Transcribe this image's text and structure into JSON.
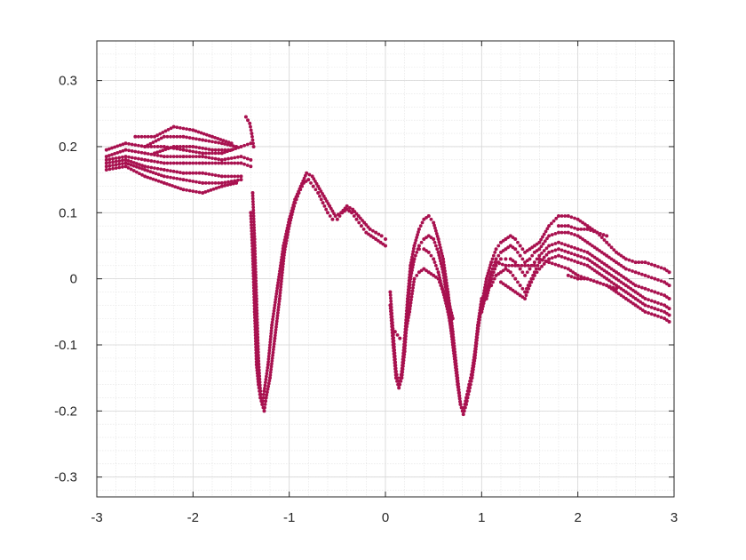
{
  "chart_data": {
    "type": "scatter",
    "xlim": [
      -3,
      3
    ],
    "ylim": [
      -0.33,
      0.36
    ],
    "grid": true,
    "minor_grid": true,
    "marker_color": "#a8114f",
    "x_ticks": [
      -3,
      -2,
      -1,
      0,
      1,
      2,
      3
    ],
    "y_ticks": [
      -0.3,
      -0.2,
      -0.1,
      0,
      0.1,
      0.2,
      0.3
    ],
    "x_tick_labels": [
      "-3",
      "-2",
      "-1",
      "0",
      "1",
      "2",
      "3"
    ],
    "y_tick_labels": [
      "-0.3",
      "-0.2",
      "-0.1",
      "0",
      "0.1",
      "0.2",
      "0.3"
    ],
    "series": [
      {
        "x": [
          -2.9,
          -2.7,
          -2.5,
          -2.3,
          -2.1,
          -1.9,
          -1.7,
          -1.5,
          -1.4
        ],
        "y": [
          0.195,
          0.205,
          0.2,
          0.2,
          0.195,
          0.19,
          0.19,
          0.2,
          0.205
        ]
      },
      {
        "x": [
          -2.9,
          -2.7,
          -2.5,
          -2.3,
          -2.1,
          -1.9,
          -1.7,
          -1.5,
          -1.4
        ],
        "y": [
          0.185,
          0.195,
          0.19,
          0.185,
          0.185,
          0.185,
          0.18,
          0.185,
          0.18
        ]
      },
      {
        "x": [
          -2.9,
          -2.7,
          -2.5,
          -2.3,
          -2.1,
          -1.9,
          -1.7,
          -1.5,
          -1.4
        ],
        "y": [
          0.18,
          0.185,
          0.18,
          0.175,
          0.175,
          0.175,
          0.175,
          0.175,
          0.17
        ]
      },
      {
        "x": [
          -2.9,
          -2.7,
          -2.5,
          -2.3,
          -2.1,
          -1.9,
          -1.7,
          -1.5
        ],
        "y": [
          0.175,
          0.18,
          0.17,
          0.165,
          0.16,
          0.16,
          0.155,
          0.155
        ]
      },
      {
        "x": [
          -2.9,
          -2.7,
          -2.5,
          -2.3,
          -2.1,
          -1.9,
          -1.7,
          -1.5
        ],
        "y": [
          0.17,
          0.175,
          0.165,
          0.155,
          0.15,
          0.145,
          0.145,
          0.15
        ]
      },
      {
        "x": [
          -2.9,
          -2.7,
          -2.5,
          -2.3,
          -2.1,
          -1.9,
          -1.7,
          -1.55
        ],
        "y": [
          0.165,
          0.17,
          0.155,
          0.145,
          0.135,
          0.13,
          0.14,
          0.145
        ]
      },
      {
        "x": [
          -2.6,
          -2.4,
          -2.2,
          -2.0,
          -1.8,
          -1.6
        ],
        "y": [
          0.215,
          0.215,
          0.23,
          0.225,
          0.215,
          0.205
        ]
      },
      {
        "x": [
          -2.5,
          -2.3,
          -2.1,
          -1.9,
          -1.7,
          -1.55
        ],
        "y": [
          0.2,
          0.215,
          0.215,
          0.21,
          0.205,
          0.2
        ]
      },
      {
        "x": [
          -2.4,
          -2.2,
          -2.0,
          -1.8,
          -1.6
        ],
        "y": [
          0.19,
          0.2,
          0.2,
          0.195,
          0.195
        ]
      },
      {
        "x": [
          -1.45,
          -1.43,
          -1.41,
          -1.39,
          -1.37
        ],
        "y": [
          0.245,
          0.24,
          0.235,
          0.22,
          0.2
        ]
      },
      {
        "x": [
          -1.38,
          -1.36,
          -1.34,
          -1.32,
          -1.3,
          -1.28,
          -1.26,
          -1.24,
          -1.2,
          -1.15,
          -1.1,
          -1.05,
          -1.0,
          -0.95,
          -0.9,
          -0.85,
          -0.8,
          -0.75,
          -0.7,
          -0.65,
          -0.6,
          -0.55,
          -0.5,
          -0.45,
          -0.4,
          -0.35,
          -0.3,
          -0.25,
          -0.2,
          -0.15,
          -0.1,
          -0.05,
          0.0
        ],
        "y": [
          0.13,
          0.06,
          -0.03,
          -0.12,
          -0.17,
          -0.19,
          -0.2,
          -0.18,
          -0.15,
          -0.09,
          -0.03,
          0.04,
          0.08,
          0.11,
          0.13,
          0.145,
          0.15,
          0.14,
          0.13,
          0.115,
          0.1,
          0.09,
          0.09,
          0.1,
          0.105,
          0.1,
          0.09,
          0.08,
          0.07,
          0.065,
          0.06,
          0.055,
          0.05
        ]
      },
      {
        "x": [
          -1.4,
          -1.38,
          -1.36,
          -1.34,
          -1.32,
          -1.3,
          -1.28,
          -1.26,
          -1.22,
          -1.18,
          -1.12,
          -1.06,
          -1.0,
          -0.94,
          -0.88,
          -0.82,
          -0.76,
          -0.7,
          -0.64,
          -0.58,
          -0.52,
          -0.46,
          -0.4,
          -0.34,
          -0.28,
          -0.22,
          -0.16,
          -0.1,
          -0.04,
          0.0
        ],
        "y": [
          0.1,
          0.04,
          -0.05,
          -0.13,
          -0.16,
          -0.18,
          -0.19,
          -0.17,
          -0.13,
          -0.07,
          -0.01,
          0.05,
          0.09,
          0.12,
          0.14,
          0.16,
          0.155,
          0.14,
          0.125,
          0.11,
          0.095,
          0.1,
          0.11,
          0.105,
          0.095,
          0.085,
          0.075,
          0.07,
          0.065,
          0.06
        ]
      },
      {
        "x": [
          0.05,
          0.08,
          0.11,
          0.14,
          0.17,
          0.2,
          0.23,
          0.26,
          0.3,
          0.35,
          0.4,
          0.45,
          0.5,
          0.55,
          0.6,
          0.65,
          0.7,
          0.75,
          0.78,
          0.81,
          0.84,
          0.87,
          0.9,
          0.93,
          0.96,
          1.0
        ],
        "y": [
          -0.02,
          -0.08,
          -0.14,
          -0.16,
          -0.14,
          -0.09,
          -0.03,
          0.02,
          0.05,
          0.075,
          0.09,
          0.095,
          0.085,
          0.06,
          0.03,
          -0.02,
          -0.08,
          -0.15,
          -0.19,
          -0.205,
          -0.19,
          -0.17,
          -0.15,
          -0.12,
          -0.08,
          -0.04
        ]
      },
      {
        "x": [
          0.05,
          0.08,
          0.11,
          0.14,
          0.17,
          0.2,
          0.23,
          0.26,
          0.3,
          0.35,
          0.4,
          0.45,
          0.5,
          0.55,
          0.6,
          0.65,
          0.7,
          0.75,
          0.78,
          0.81,
          0.84,
          0.87,
          0.9,
          0.93,
          0.96,
          1.0
        ],
        "y": [
          -0.04,
          -0.1,
          -0.15,
          -0.165,
          -0.15,
          -0.11,
          -0.05,
          0.0,
          0.03,
          0.05,
          0.06,
          0.065,
          0.06,
          0.04,
          0.01,
          -0.04,
          -0.1,
          -0.16,
          -0.19,
          -0.2,
          -0.18,
          -0.16,
          -0.14,
          -0.11,
          -0.07,
          -0.03
        ]
      },
      {
        "x": [
          0.1,
          0.15,
          0.2,
          0.25,
          0.3,
          0.35,
          0.4,
          0.45,
          0.5,
          0.55,
          0.6,
          0.65,
          0.7
        ],
        "y": [
          -0.08,
          -0.09,
          -0.09,
          -0.05,
          0.0,
          0.01,
          0.015,
          0.01,
          0.005,
          0.0,
          -0.02,
          -0.05,
          -0.09
        ]
      },
      {
        "x": [
          0.35,
          0.4,
          0.45,
          0.5,
          0.55,
          0.6,
          0.65,
          0.7
        ],
        "y": [
          0.045,
          0.045,
          0.04,
          0.03,
          0.01,
          -0.02,
          -0.03,
          -0.06
        ]
      },
      {
        "x": [
          1.0,
          1.05,
          1.1,
          1.15,
          1.2,
          1.25,
          1.3,
          1.35,
          1.4,
          1.45,
          1.5,
          1.55,
          1.6,
          1.7,
          1.8,
          1.9,
          2.0,
          2.1,
          2.2,
          2.3,
          2.4,
          2.5,
          2.6,
          2.7,
          2.8,
          2.9,
          2.95
        ],
        "y": [
          -0.04,
          0.0,
          0.025,
          0.045,
          0.055,
          0.06,
          0.065,
          0.06,
          0.05,
          0.04,
          0.045,
          0.05,
          0.055,
          0.08,
          0.095,
          0.095,
          0.09,
          0.08,
          0.07,
          0.055,
          0.04,
          0.03,
          0.025,
          0.025,
          0.02,
          0.015,
          0.01
        ]
      },
      {
        "x": [
          1.0,
          1.05,
          1.1,
          1.15,
          1.2,
          1.25,
          1.3,
          1.35,
          1.4,
          1.45,
          1.5,
          1.55,
          1.6,
          1.7,
          1.8,
          1.9,
          2.0,
          2.1,
          2.2,
          2.3,
          2.4,
          2.5,
          2.6,
          2.7,
          2.8,
          2.9,
          2.95
        ],
        "y": [
          -0.05,
          -0.02,
          0.01,
          0.03,
          0.04,
          0.045,
          0.05,
          0.045,
          0.035,
          0.025,
          0.03,
          0.04,
          0.045,
          0.065,
          0.07,
          0.07,
          0.065,
          0.055,
          0.045,
          0.035,
          0.025,
          0.015,
          0.01,
          0.005,
          0.0,
          -0.005,
          -0.01
        ]
      },
      {
        "x": [
          1.05,
          1.1,
          1.15,
          1.2,
          1.25,
          1.3,
          1.35,
          1.4,
          1.45,
          1.5,
          1.55,
          1.6,
          1.7,
          1.8,
          1.9,
          2.0,
          2.1,
          2.2,
          2.3,
          2.4,
          2.5,
          2.6,
          2.7,
          2.8,
          2.9,
          2.95
        ],
        "y": [
          -0.03,
          0.0,
          0.02,
          0.03,
          0.03,
          0.03,
          0.025,
          0.015,
          0.005,
          0.015,
          0.025,
          0.035,
          0.05,
          0.055,
          0.05,
          0.045,
          0.04,
          0.03,
          0.02,
          0.01,
          0.0,
          -0.01,
          -0.015,
          -0.02,
          -0.025,
          -0.03
        ]
      },
      {
        "x": [
          1.1,
          1.15,
          1.2,
          1.25,
          1.3,
          1.35,
          1.4,
          1.45,
          1.5,
          1.55,
          1.6,
          1.7,
          1.8,
          1.9,
          2.0,
          2.1,
          2.2,
          2.3,
          2.4,
          2.5,
          2.6,
          2.7,
          2.8,
          2.9,
          2.95
        ],
        "y": [
          -0.01,
          0.005,
          0.01,
          0.015,
          0.01,
          0.0,
          -0.01,
          -0.02,
          -0.005,
          0.01,
          0.025,
          0.04,
          0.045,
          0.04,
          0.035,
          0.03,
          0.02,
          0.01,
          0.0,
          -0.01,
          -0.02,
          -0.03,
          -0.035,
          -0.04,
          -0.045
        ]
      },
      {
        "x": [
          1.2,
          1.25,
          1.3,
          1.35,
          1.4,
          1.45,
          1.5,
          1.55,
          1.6,
          1.7,
          1.8,
          1.9,
          2.0,
          2.1,
          2.2,
          2.3,
          2.4,
          2.5,
          2.6,
          2.7,
          2.8,
          2.9,
          2.95
        ],
        "y": [
          -0.005,
          -0.01,
          -0.015,
          -0.02,
          -0.025,
          -0.03,
          -0.01,
          0.005,
          0.015,
          0.03,
          0.035,
          0.03,
          0.025,
          0.02,
          0.01,
          0.0,
          -0.01,
          -0.02,
          -0.03,
          -0.04,
          -0.045,
          -0.05,
          -0.055
        ]
      },
      {
        "x": [
          1.6,
          1.7,
          1.8,
          1.9,
          2.0,
          2.1,
          2.2,
          2.3,
          2.4,
          2.5,
          2.6,
          2.7,
          2.8,
          2.9,
          2.95
        ],
        "y": [
          0.03,
          0.025,
          0.02,
          0.015,
          0.005,
          0.0,
          -0.005,
          -0.01,
          -0.02,
          -0.03,
          -0.04,
          -0.05,
          -0.055,
          -0.06,
          -0.065
        ]
      },
      {
        "x": [
          1.8,
          1.9,
          2.0,
          2.1,
          2.2,
          2.3
        ],
        "y": [
          0.08,
          0.08,
          0.075,
          0.075,
          0.07,
          0.065
        ]
      },
      {
        "x": [
          1.9,
          2.0,
          2.1,
          2.2,
          2.3,
          2.4
        ],
        "y": [
          0.005,
          0.0,
          0.0,
          -0.005,
          -0.01,
          -0.015
        ]
      },
      {
        "x": [
          1.15,
          1.25,
          1.35,
          1.45,
          1.55
        ],
        "y": [
          0.025,
          0.02,
          0.02,
          0.02,
          0.02
        ]
      }
    ]
  }
}
